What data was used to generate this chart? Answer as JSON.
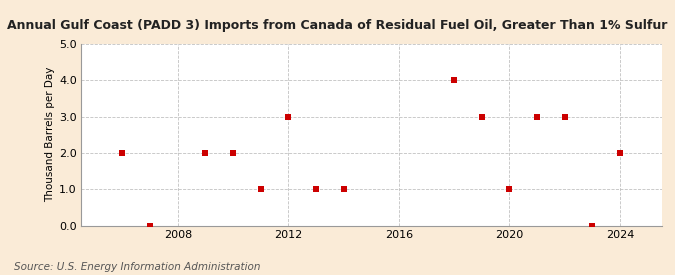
{
  "title": "Annual Gulf Coast (PADD 3) Imports from Canada of Residual Fuel Oil, Greater Than 1% Sulfur",
  "ylabel": "Thousand Barrels per Day",
  "source": "Source: U.S. Energy Information Administration",
  "background_color": "#faebd7",
  "plot_bg_color": "#ffffff",
  "marker_color": "#cc0000",
  "grid_color": "#bbbbbb",
  "xlim": [
    2004.5,
    2025.5
  ],
  "ylim": [
    0.0,
    5.0
  ],
  "yticks": [
    0.0,
    1.0,
    2.0,
    3.0,
    4.0,
    5.0
  ],
  "xticks": [
    2008,
    2012,
    2016,
    2020,
    2024
  ],
  "data": {
    "years": [
      2006,
      2007,
      2009,
      2010,
      2011,
      2012,
      2013,
      2014,
      2018,
      2019,
      2020,
      2021,
      2022,
      2023,
      2024
    ],
    "values": [
      2.0,
      0.0,
      2.0,
      2.0,
      1.0,
      3.0,
      1.0,
      1.0,
      4.0,
      3.0,
      1.0,
      3.0,
      3.0,
      0.0,
      2.0
    ]
  },
  "title_fontsize": 9,
  "ylabel_fontsize": 7.5,
  "tick_fontsize": 8,
  "source_fontsize": 7.5,
  "marker_size": 18
}
